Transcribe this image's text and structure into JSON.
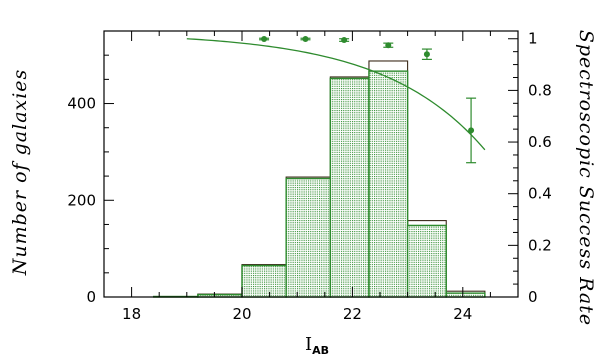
{
  "chart_data": {
    "type": "bar",
    "xlabel": {
      "main": "I",
      "sub": "AB"
    },
    "ylabel_left": "Number of galaxies",
    "ylabel_right": "Spectroscopic Success Rate",
    "xlim": [
      17.5,
      25
    ],
    "ylim_left": [
      0,
      550
    ],
    "ylim_right": [
      0,
      1.03
    ],
    "x_ticks": [
      18,
      20,
      22,
      24
    ],
    "y_left_ticks": [
      0,
      200,
      400
    ],
    "y_right_ticks": [
      0,
      0.2,
      0.4,
      0.6,
      0.8,
      1
    ],
    "bin_edges": [
      18.4,
      19.2,
      20.0,
      20.8,
      21.6,
      22.3,
      23.0,
      23.7,
      24.4
    ],
    "series": [
      {
        "type": "histogram-outline",
        "values": [
          1,
          6,
          67,
          248,
          455,
          488,
          158,
          12
        ]
      },
      {
        "type": "histogram-filled",
        "values": [
          1,
          5,
          65,
          245,
          452,
          467,
          148,
          8
        ]
      },
      {
        "type": "points-with-errors",
        "x": [
          20.4,
          21.15,
          21.85,
          22.65,
          23.35,
          24.15
        ],
        "y": [
          0.999,
          0.999,
          0.995,
          0.975,
          0.94,
          0.645
        ],
        "yerr": [
          0.003,
          0.003,
          0.005,
          0.008,
          0.02,
          0.125
        ]
      },
      {
        "type": "fit-curve",
        "x_range": [
          19.0,
          24.4
        ],
        "y_at_start": 1.0,
        "y_at_end": 0.57
      }
    ],
    "colors": {
      "green": "#2e8b2e",
      "dark_outline": "#3b2a1a",
      "fill": "#2e8b2e"
    }
  }
}
